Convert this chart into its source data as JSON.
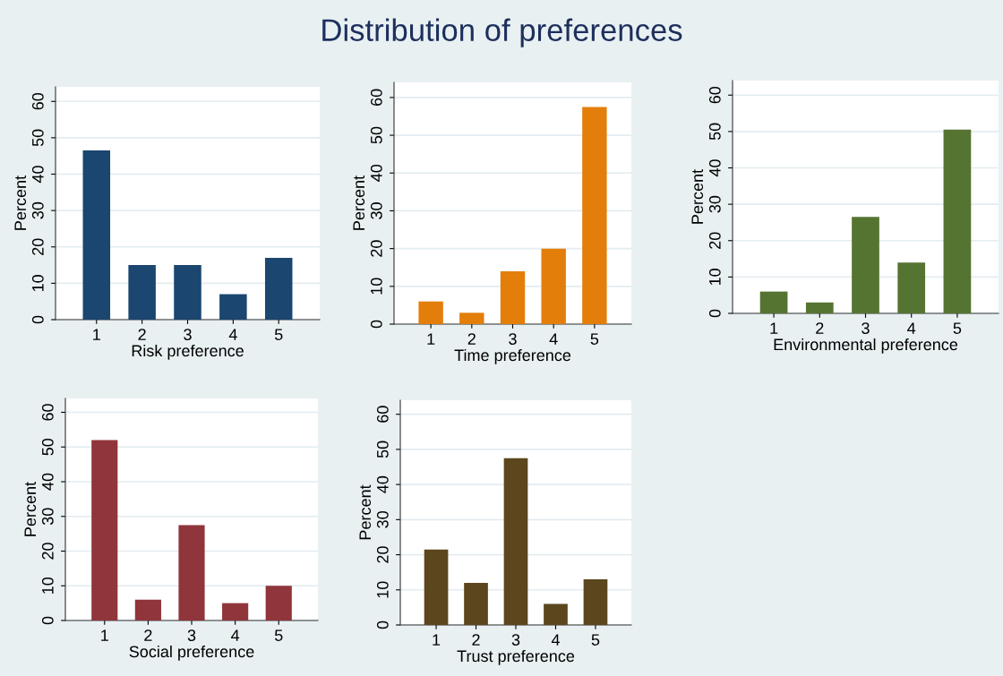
{
  "chart_data": [
    {
      "type": "bar",
      "categories": [
        "1",
        "2",
        "3",
        "4",
        "5"
      ],
      "values": [
        46.5,
        15,
        15,
        7,
        17
      ],
      "color": "#1a466f",
      "xlabel": "Risk preference",
      "ylabel": "Percent",
      "ylim": [
        0,
        64
      ],
      "yticks": [
        0,
        10,
        20,
        30,
        40,
        50,
        60
      ],
      "grid": "y"
    },
    {
      "type": "bar",
      "title": "Distribution of preferences",
      "categories": [
        "1",
        "2",
        "3",
        "4",
        "5"
      ],
      "values": [
        6,
        3,
        14,
        20,
        57.5
      ],
      "color": "#e37e0b",
      "xlabel": "Time preference",
      "ylabel": "Percent",
      "ylim": [
        0,
        64
      ],
      "yticks": [
        0,
        10,
        20,
        30,
        40,
        50,
        60
      ],
      "grid": "y"
    },
    {
      "type": "bar",
      "categories": [
        "1",
        "2",
        "3",
        "4",
        "5"
      ],
      "values": [
        6,
        3,
        26.5,
        14,
        50.5
      ],
      "color": "#557431",
      "xlabel": "Environmental preference",
      "ylabel": "Percent",
      "ylim": [
        0,
        64
      ],
      "yticks": [
        0,
        10,
        20,
        30,
        40,
        50,
        60
      ],
      "grid": "y"
    },
    {
      "type": "bar",
      "categories": [
        "1",
        "2",
        "3",
        "4",
        "5"
      ],
      "values": [
        52,
        6,
        27.5,
        5,
        10
      ],
      "color": "#90353b",
      "xlabel": "Social preference",
      "ylabel": "Percent",
      "ylim": [
        0,
        64
      ],
      "yticks": [
        0,
        10,
        20,
        30,
        40,
        50,
        60
      ],
      "grid": "y"
    },
    {
      "type": "bar",
      "categories": [
        "1",
        "2",
        "3",
        "4",
        "5"
      ],
      "values": [
        21.5,
        12,
        47.5,
        6,
        13
      ],
      "color": "#5c461d",
      "xlabel": "Trust preference",
      "ylabel": "Percent",
      "ylim": [
        0,
        64
      ],
      "yticks": [
        0,
        10,
        20,
        30,
        40,
        50,
        60
      ],
      "grid": "y"
    }
  ]
}
